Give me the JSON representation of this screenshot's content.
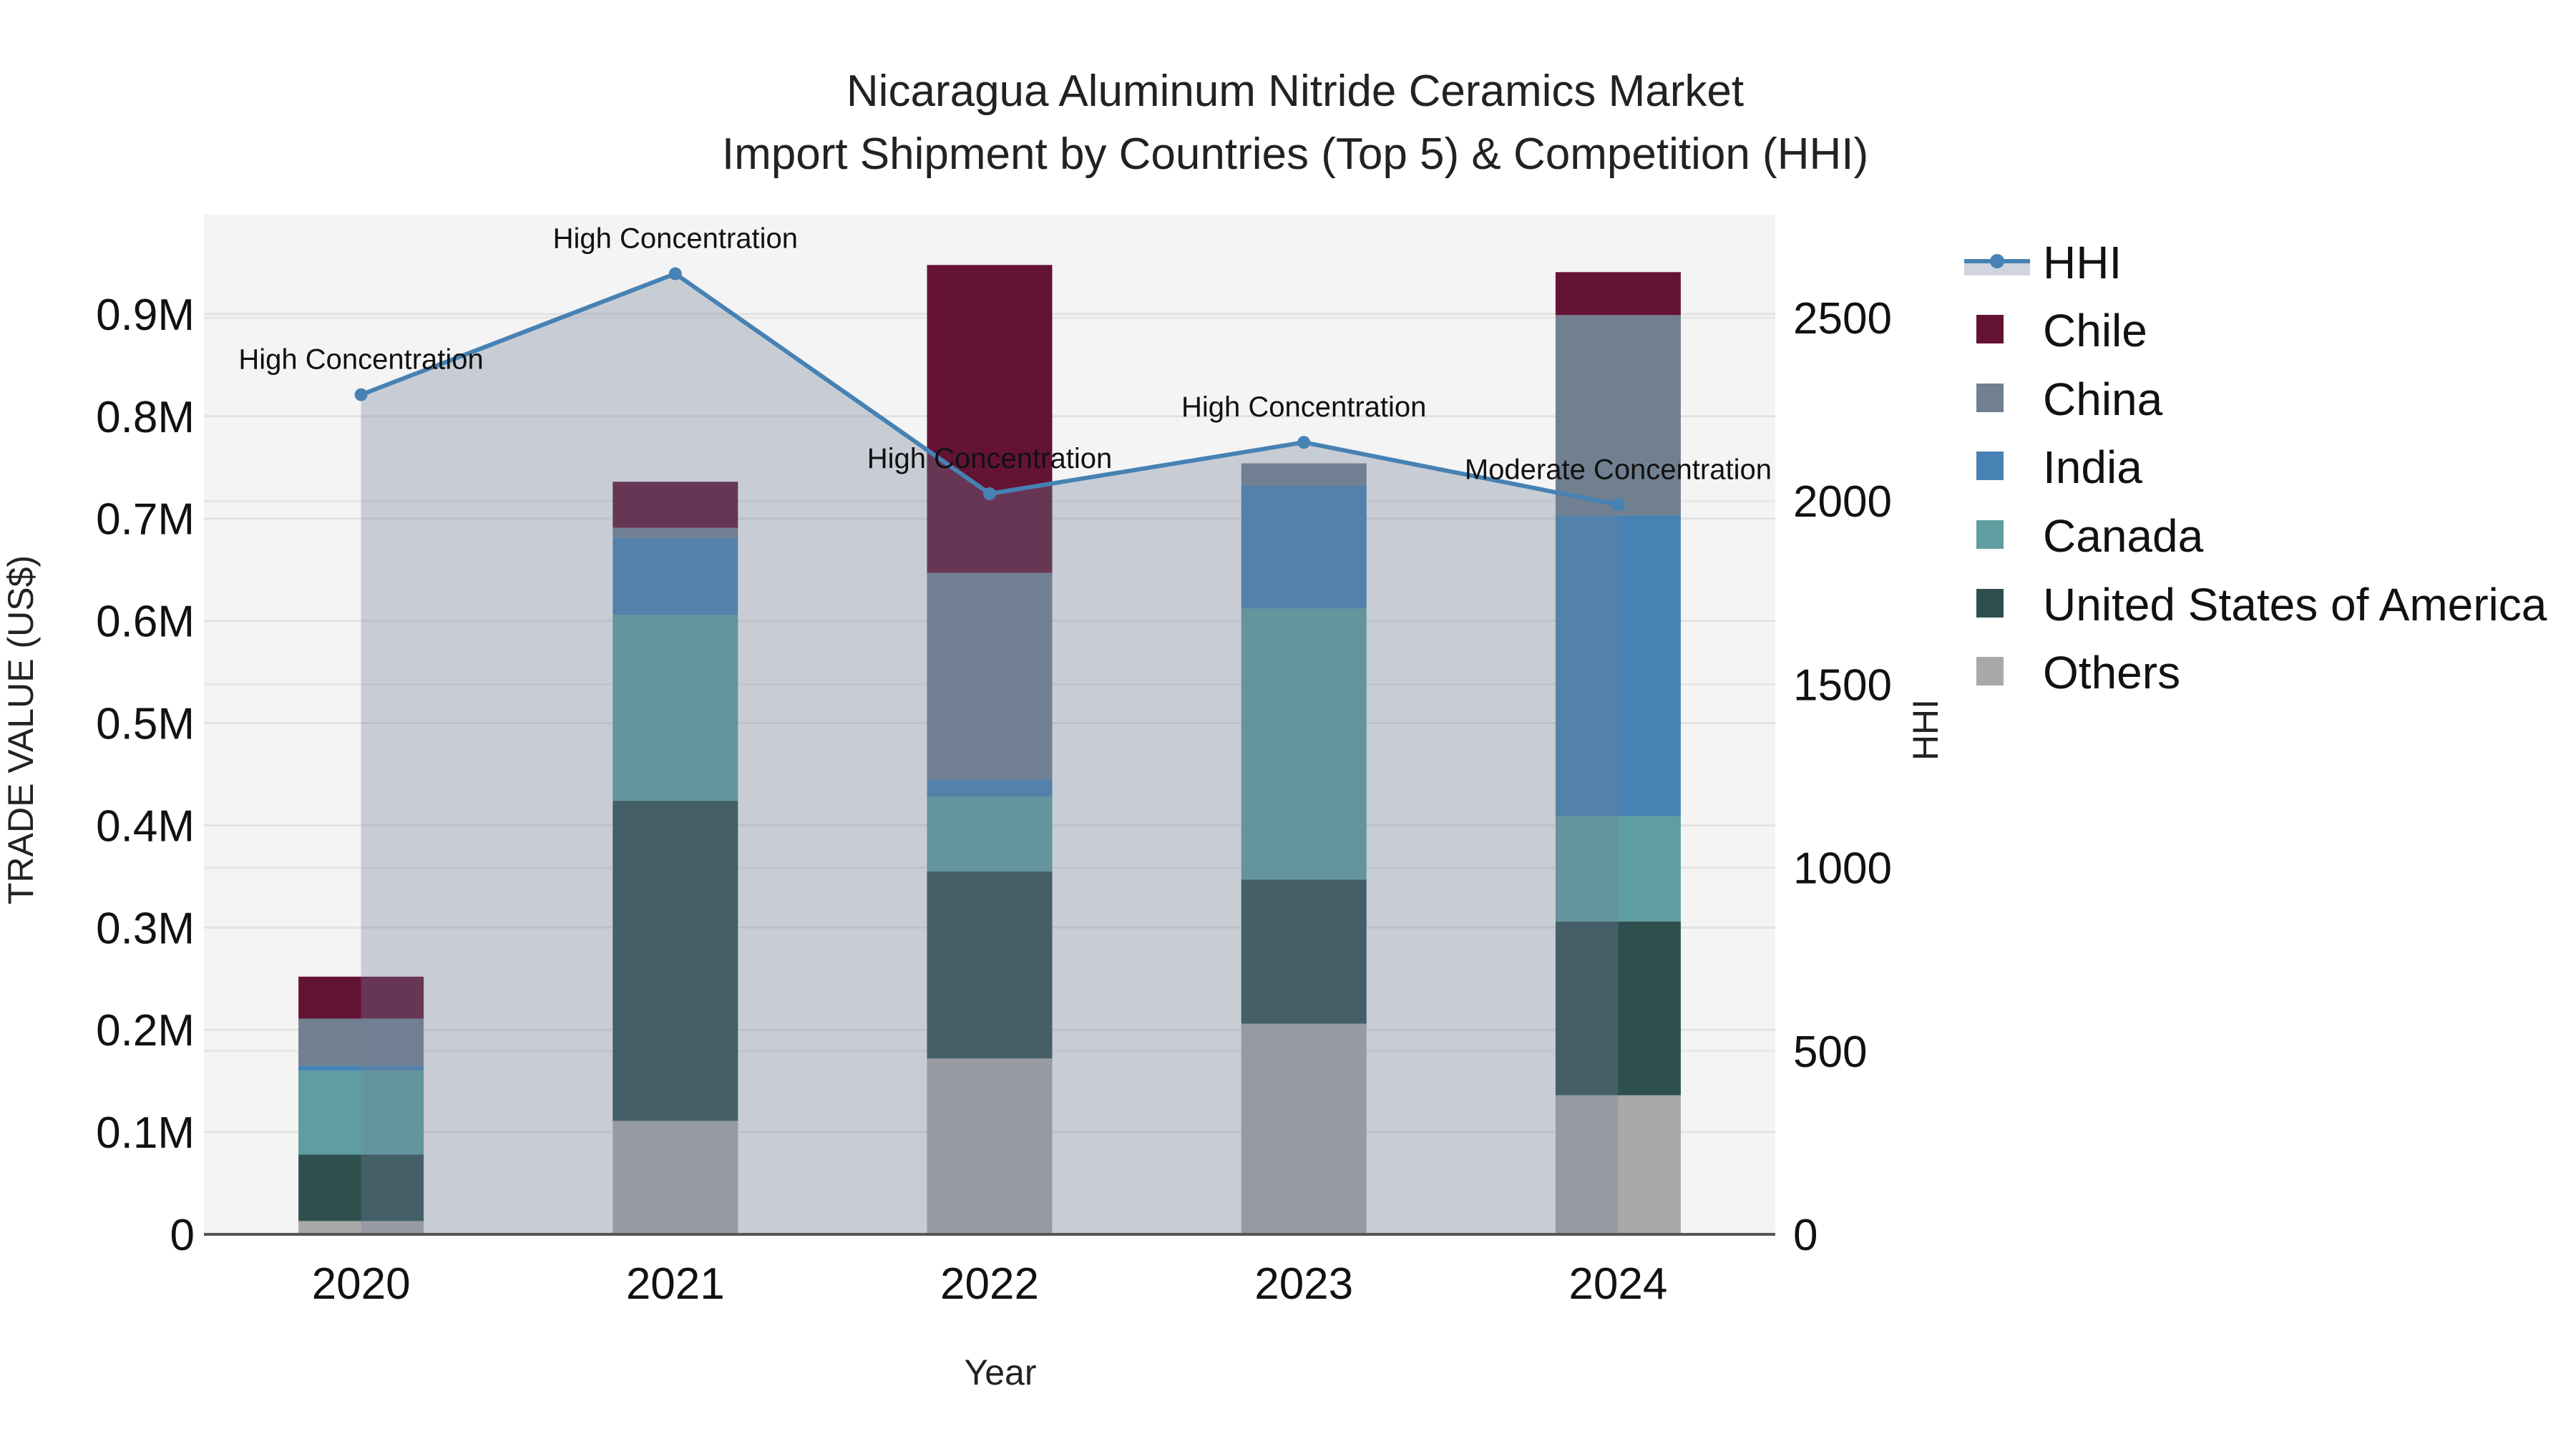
{
  "title": {
    "line1": "Nicaragua Aluminum Nitride Ceramics Market",
    "line2": "Import Shipment by Countries (Top 5) & Competition (HHI)"
  },
  "axes": {
    "y_left_title": "TRADE VALUE (US$)",
    "y_right_title": "HHI",
    "x_title": "Year",
    "y_left_ticks": [
      "0",
      "0.1M",
      "0.2M",
      "0.3M",
      "0.4M",
      "0.5M",
      "0.6M",
      "0.7M",
      "0.8M",
      "0.9M"
    ],
    "y_right_ticks": [
      "0",
      "500",
      "1000",
      "1500",
      "2000",
      "2500"
    ]
  },
  "legend": [
    {
      "label": "HHI",
      "type": "line",
      "color": "#4682b4"
    },
    {
      "label": "Chile",
      "type": "box",
      "color": "#641335"
    },
    {
      "label": "China",
      "type": "box",
      "color": "#708090"
    },
    {
      "label": "India",
      "type": "box",
      "color": "#4682b4"
    },
    {
      "label": "Canada",
      "type": "box",
      "color": "#5f9ea0"
    },
    {
      "label": "United States of America",
      "type": "box",
      "color": "#2f4f4f"
    },
    {
      "label": "Others",
      "type": "box",
      "color": "#a9a9a9"
    }
  ],
  "chart_data": {
    "type": "bar",
    "stacked": true,
    "title": "Nicaragua Aluminum Nitride Ceramics Market — Import Shipment by Countries (Top 5) & Competition (HHI)",
    "xlabel": "Year",
    "ylabel": "TRADE VALUE (US$)",
    "y2label": "HHI",
    "ylim": [
      0,
      996000
    ],
    "y2lim": [
      0,
      2767
    ],
    "grid": true,
    "legend_position": "right",
    "categories": [
      "2020",
      "2021",
      "2022",
      "2023",
      "2024"
    ],
    "series": [
      {
        "name": "Others",
        "color": "#a9a9a9",
        "values": [
          13000,
          111000,
          172000,
          206000,
          136000
        ]
      },
      {
        "name": "United States of America",
        "color": "#2f4f4f",
        "values": [
          65000,
          313000,
          183000,
          141000,
          170000
        ]
      },
      {
        "name": "Canada",
        "color": "#5f9ea0",
        "values": [
          82000,
          182000,
          73000,
          265000,
          103000
        ]
      },
      {
        "name": "India",
        "color": "#4682b4",
        "values": [
          5000,
          75000,
          17000,
          120000,
          294000
        ]
      },
      {
        "name": "China",
        "color": "#708090",
        "values": [
          46000,
          10000,
          202000,
          22000,
          196000
        ]
      },
      {
        "name": "Chile",
        "color": "#641335",
        "values": [
          41000,
          45000,
          301000,
          0,
          42000
        ]
      }
    ],
    "line_series": {
      "name": "HHI",
      "axis": "right",
      "color": "#4682b4",
      "values": [
        2290,
        2620,
        2020,
        2160,
        1990
      ],
      "annotations": [
        "High Concentration",
        "High Concentration",
        "High Concentration",
        "High Concentration",
        "Moderate Concentration"
      ]
    }
  }
}
